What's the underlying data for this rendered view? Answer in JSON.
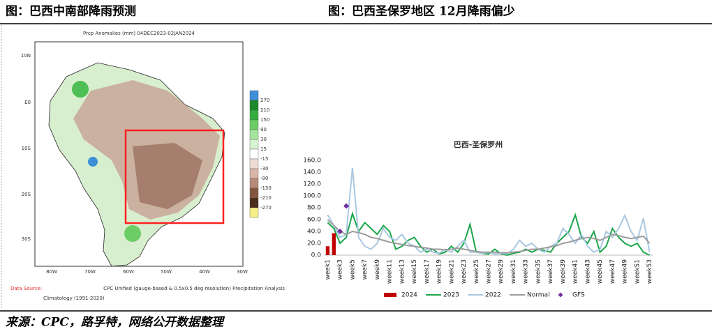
{
  "header": {
    "left_title": "图：巴西中南部降雨预测",
    "right_title": "图：巴西圣保罗地区 12月降雨偏少"
  },
  "map": {
    "title": "Prcp Anomalies (mm) 04DEC2023-02JAN2024",
    "lat_labels": [
      "10N",
      "E0",
      "10S",
      "20S",
      "30S"
    ],
    "lon_labels": [
      "80W",
      "70W",
      "60W",
      "50W",
      "40W",
      "30W"
    ],
    "colorbar_labels": [
      "270",
      "210",
      "150",
      "90",
      "30",
      "15",
      "-15",
      "-30",
      "-90",
      "-150",
      "-210",
      "-270"
    ],
    "colorbar_colors": [
      "#3d8fd8",
      "#1a8a2a",
      "#34ad3e",
      "#6ccd66",
      "#a6e59e",
      "#d6f4cf",
      "#ffffff",
      "#eedcd3",
      "#d9b6a6",
      "#b58a78",
      "#85563f",
      "#4c2c1b",
      "#f6ef86"
    ],
    "source_label": "Data Source:",
    "source_text": "CPC Unified (gauge-based & 0.5x0.5 deg resolution) Precipitation Analysis",
    "source_text2": "Climatology (1991-2020)"
  },
  "chart_data": {
    "type": "line",
    "title": "巴西-圣保罗州",
    "categories": [
      "week1",
      null,
      "week3",
      null,
      "week5",
      null,
      "week7",
      null,
      "week9",
      null,
      "week11",
      null,
      "week13",
      null,
      "week15",
      null,
      "week17",
      null,
      "week19",
      null,
      "week21",
      null,
      "week23",
      null,
      "week25",
      null,
      "week27",
      null,
      "week29",
      null,
      "week31",
      null,
      "week33",
      null,
      "week35",
      null,
      "week37",
      null,
      "week39",
      null,
      "week41",
      null,
      "week43",
      null,
      "week45",
      null,
      "week47",
      null,
      "week49",
      null,
      "week51",
      null,
      "week53"
    ],
    "ylim": [
      0,
      160
    ],
    "yticks": [
      {
        "value": 0,
        "label": "0.0"
      },
      {
        "value": 20,
        "label": "20.0"
      },
      {
        "value": 40,
        "label": "40.0"
      },
      {
        "value": 60,
        "label": "60.0"
      },
      {
        "value": 80,
        "label": "80.0"
      },
      {
        "value": 100,
        "label": "100.0"
      },
      {
        "value": 120,
        "label": "120.0"
      },
      {
        "value": 140,
        "label": "140.0"
      },
      {
        "value": 160,
        "label": "160.0"
      }
    ],
    "grid": false,
    "series": [
      {
        "name": "2024",
        "type": "bar",
        "color": "#c00000",
        "values": [
          15,
          37,
          null,
          null,
          null,
          null,
          null,
          null,
          null,
          null,
          null,
          null,
          null,
          null,
          null,
          null,
          null,
          null,
          null,
          null,
          null,
          null,
          null,
          null,
          null,
          null,
          null,
          null,
          null,
          null,
          null,
          null,
          null,
          null,
          null,
          null,
          null,
          null,
          null,
          null,
          null,
          null,
          null,
          null,
          null,
          null,
          null,
          null,
          null,
          null,
          null,
          null,
          null
        ]
      },
      {
        "name": "2023",
        "type": "line",
        "color": "#1aa64a",
        "values": [
          55,
          45,
          20,
          30,
          70,
          40,
          55,
          45,
          35,
          50,
          40,
          10,
          15,
          25,
          30,
          15,
          5,
          10,
          2,
          5,
          15,
          5,
          20,
          52,
          5,
          3,
          2,
          10,
          2,
          0,
          3,
          5,
          10,
          5,
          10,
          8,
          5,
          20,
          30,
          40,
          68,
          30,
          20,
          40,
          5,
          15,
          45,
          30,
          20,
          15,
          20,
          5,
          0
        ]
      },
      {
        "name": "2022",
        "type": "line",
        "color": "#a9c8e2",
        "values": [
          68,
          50,
          30,
          35,
          147,
          30,
          15,
          10,
          20,
          45,
          30,
          25,
          35,
          20,
          15,
          5,
          10,
          5,
          3,
          10,
          5,
          15,
          25,
          5,
          5,
          3,
          5,
          2,
          3,
          2,
          10,
          25,
          15,
          20,
          10,
          5,
          15,
          20,
          45,
          35,
          20,
          35,
          15,
          5,
          10,
          40,
          30,
          45,
          67,
          40,
          25,
          62,
          5
        ]
      },
      {
        "name": "Normal",
        "type": "line",
        "color": "#9b9b9b",
        "values": [
          60,
          50,
          40,
          35,
          40,
          38,
          35,
          30,
          28,
          25,
          22,
          20,
          18,
          16,
          15,
          13,
          12,
          10,
          10,
          9,
          10,
          12,
          10,
          8,
          6,
          5,
          5,
          5,
          4,
          4,
          5,
          6,
          8,
          10,
          10,
          12,
          14,
          16,
          20,
          22,
          25,
          28,
          30,
          28,
          25,
          30,
          35,
          33,
          30,
          28,
          30,
          32,
          20
        ]
      },
      {
        "name": "GFS",
        "type": "scatter",
        "color": "#7030a0",
        "values": [
          null,
          null,
          40,
          83,
          null,
          null,
          null,
          null,
          null,
          null,
          null,
          null,
          null,
          null,
          null,
          null,
          null,
          null,
          null,
          null,
          null,
          null,
          null,
          null,
          null,
          null,
          null,
          null,
          null,
          null,
          null,
          null,
          null,
          null,
          null,
          null,
          null,
          null,
          null,
          null,
          null,
          null,
          null,
          null,
          null,
          null,
          null,
          null,
          null,
          null,
          null,
          null,
          null
        ]
      }
    ]
  },
  "footer": {
    "source": "来源：CPC，路孚特，网络公开数据整理"
  }
}
